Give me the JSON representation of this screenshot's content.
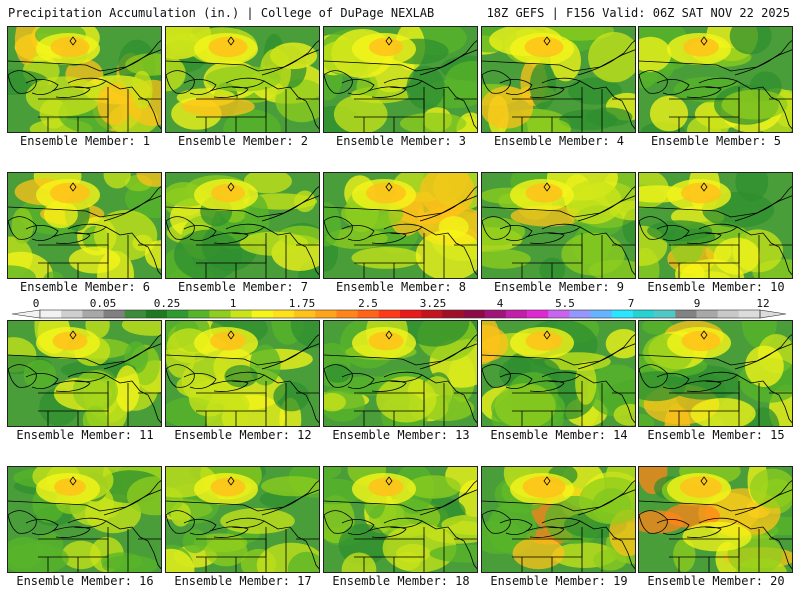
{
  "header": {
    "title": "Precipitation Accumulation (in.) | College of DuPage NEXLAB",
    "run_info": "18Z GEFS | F156 Valid: 06Z SAT NOV 22 2025"
  },
  "panels": [
    {
      "label": "Ensemble Member: 1",
      "intensity": 0.55
    },
    {
      "label": "Ensemble Member: 2",
      "intensity": 0.55
    },
    {
      "label": "Ensemble Member: 3",
      "intensity": 0.3
    },
    {
      "label": "Ensemble Member: 4",
      "intensity": 0.55
    },
    {
      "label": "Ensemble Member: 5",
      "intensity": 0.4
    },
    {
      "label": "Ensemble Member: 6",
      "intensity": 0.6
    },
    {
      "label": "Ensemble Member: 7",
      "intensity": 0.3
    },
    {
      "label": "Ensemble Member: 8",
      "intensity": 0.6
    },
    {
      "label": "Ensemble Member: 9",
      "intensity": 0.45
    },
    {
      "label": "Ensemble Member: 10",
      "intensity": 0.6
    },
    {
      "label": "Ensemble Member: 11",
      "intensity": 0.35
    },
    {
      "label": "Ensemble Member: 12",
      "intensity": 0.4
    },
    {
      "label": "Ensemble Member: 13",
      "intensity": 0.35
    },
    {
      "label": "Ensemble Member: 14",
      "intensity": 0.45
    },
    {
      "label": "Ensemble Member: 15",
      "intensity": 0.55
    },
    {
      "label": "Ensemble Member: 16",
      "intensity": 0.2
    },
    {
      "label": "Ensemble Member: 17",
      "intensity": 0.35
    },
    {
      "label": "Ensemble Member: 18",
      "intensity": 0.35
    },
    {
      "label": "Ensemble Member: 19",
      "intensity": 0.75
    },
    {
      "label": "Ensemble Member: 20",
      "intensity": 0.7
    }
  ],
  "colorbar": {
    "ticks": [
      "0",
      "0.05",
      "0.25",
      "1",
      "1.75",
      "2.5",
      "3.25",
      "4",
      "5.5",
      "7",
      "9",
      "12"
    ],
    "colors": [
      "#f2f2f2",
      "#cfcfcf",
      "#a8a8a8",
      "#808080",
      "#3c8c3c",
      "#1f7a1f",
      "#2f9a2f",
      "#58b42a",
      "#8fcd1e",
      "#c9e41a",
      "#f5f51a",
      "#ffe01a",
      "#ffc21a",
      "#ffa41a",
      "#ff8419",
      "#ff6419",
      "#ff3a19",
      "#e81a1a",
      "#c4141e",
      "#a00f28",
      "#8c0a46",
      "#a0147a",
      "#c31eaa",
      "#e028d2",
      "#c864f0",
      "#9696ff",
      "#64b4ff",
      "#28e6ff",
      "#28d2d2",
      "#50c8c8",
      "#828282",
      "#a8a8a8",
      "#c8c8c8",
      "#dcdcdc"
    ]
  }
}
